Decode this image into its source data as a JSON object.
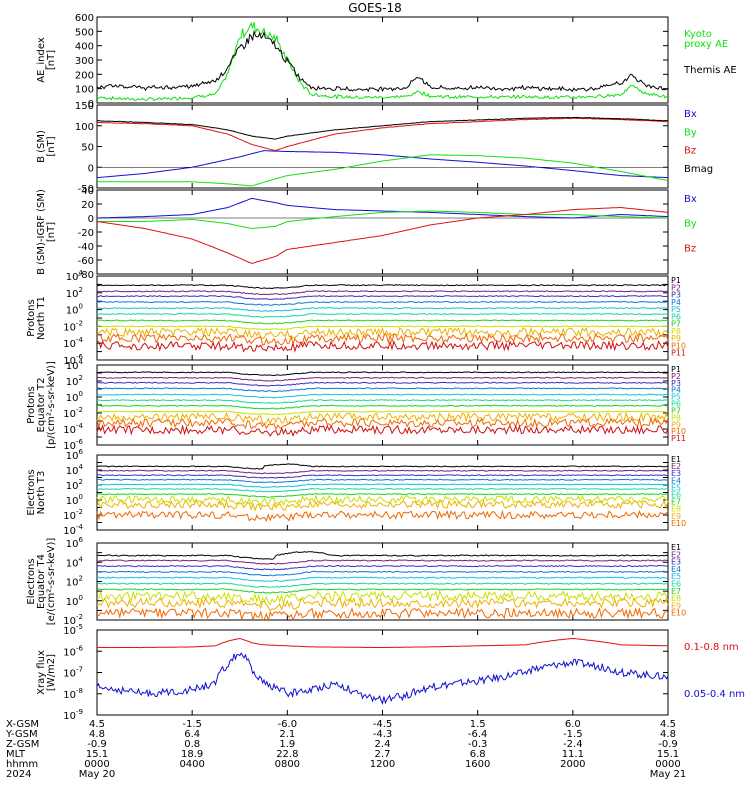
{
  "title": "GOES-18",
  "colors": {
    "black": "#000000",
    "red": "#e01010",
    "green": "#10e010",
    "blue": "#1010d0",
    "dark_red": "#a00000",
    "p_channel": [
      "#000000",
      "#7a1f7a",
      "#3a2fc0",
      "#0b78d8",
      "#12c0e0",
      "#10d8a0",
      "#20d020",
      "#c8e000",
      "#f0b000",
      "#f06800",
      "#d01010",
      "#a00000"
    ]
  },
  "panels": {
    "ae": {
      "ylabel": [
        "AE_index",
        "[nT]"
      ],
      "legend": [
        {
          "text": "Kyoto",
          "color_key": "green"
        },
        {
          "text": "proxy AE",
          "color_key": "green"
        },
        {
          "text": "Themis AE",
          "color_key": "black"
        }
      ]
    },
    "bsm": {
      "ylabel": [
        "B (SM)",
        "[nT]"
      ],
      "legend": [
        {
          "text": "Bx",
          "color_key": "blue"
        },
        {
          "text": "By",
          "color_key": "green"
        },
        {
          "text": "Bz",
          "color_key": "red"
        },
        {
          "text": "Bmag",
          "color_key": "black"
        }
      ]
    },
    "bigrf": {
      "ylabel": [
        "B (SM)-IGRF (SM)",
        "[nT]"
      ],
      "legend": [
        {
          "text": "Bx",
          "color_key": "blue"
        },
        {
          "text": "By",
          "color_key": "green"
        },
        {
          "text": "Bz",
          "color_key": "red"
        }
      ]
    },
    "pnt1": {
      "ylabel": [
        "Protons",
        "North T1"
      ],
      "channels": [
        "P1",
        "P2",
        "P3",
        "P4",
        "P5",
        "P6",
        "P7",
        "P8",
        "P9",
        "P10",
        "P11"
      ]
    },
    "pet2": {
      "ylabel": [
        "Protons",
        "Equator T2",
        "[p/(cm²-s-sr-keV)]"
      ],
      "channels": [
        "P1",
        "P2",
        "P3",
        "P4",
        "P5",
        "P6",
        "P7",
        "P8",
        "P9",
        "P10",
        "P11"
      ]
    },
    "ent3": {
      "ylabel": [
        "Electrons",
        "North T3"
      ],
      "channels": [
        "E1",
        "E2",
        "E3",
        "E4",
        "E5",
        "E6",
        "E7",
        "E8",
        "E9",
        "E10"
      ]
    },
    "eet4": {
      "ylabel": [
        "Electrons",
        "Equator T4",
        "[e/(cm²-s-sr-keV)]"
      ],
      "channels": [
        "E1",
        "E2",
        "E3",
        "E4",
        "E5",
        "E6",
        "E7",
        "E8",
        "E9",
        "E10"
      ]
    },
    "xray": {
      "ylabel": [
        "Xray flux",
        "[W/m2]"
      ],
      "legend": [
        {
          "text": "0.1-0.8 nm",
          "color_key": "red"
        },
        {
          "text": "0.05-0.4 nm",
          "color_key": "blue"
        }
      ]
    }
  },
  "x_axis": {
    "rows": [
      {
        "label": "X-GSM",
        "values": [
          "4.5",
          "-1.5",
          "-6.0",
          "-4.5",
          "1.5",
          "6.0",
          "4.5"
        ]
      },
      {
        "label": "Y-GSM",
        "values": [
          "4.8",
          "6.4",
          "2.1",
          "-4.3",
          "-6.4",
          "-1.5",
          "4.8"
        ]
      },
      {
        "label": "Z-GSM",
        "values": [
          "-0.9",
          "0.8",
          "1.9",
          "2.4",
          "-0.3",
          "-2.4",
          "-0.9"
        ]
      },
      {
        "label": "MLT",
        "values": [
          "15.1",
          "18.9",
          "22.8",
          "2.7",
          "6.8",
          "11.1",
          "15.1"
        ]
      },
      {
        "label": "hhmm",
        "values": [
          "0000",
          "0400",
          "0800",
          "1200",
          "1600",
          "2000",
          "0000"
        ]
      },
      {
        "label": "2024",
        "values": [
          "May 20",
          "",
          "",
          "",
          "",
          "",
          "May 21"
        ]
      }
    ]
  },
  "chart_data": [
    {
      "type": "line",
      "title": "GOES-18",
      "ylabel": "AE_index [nT]",
      "ylim": [
        0,
        600
      ],
      "yticks": [
        0,
        100,
        200,
        300,
        400,
        500,
        600
      ],
      "xlim": [
        "2024-05-20 00:00",
        "2024-05-21 00:00"
      ],
      "series": [
        {
          "name": "Kyoto proxy AE",
          "color": "#10e010",
          "x": [
            0,
            1,
            2,
            3,
            4,
            5,
            5.5,
            6,
            6.5,
            7,
            7.5,
            8,
            8.5,
            9,
            10,
            11,
            12,
            13,
            13.5,
            14,
            15,
            16,
            17,
            18,
            19,
            20,
            21,
            22,
            22.5,
            23,
            24
          ],
          "y": [
            40,
            30,
            25,
            30,
            40,
            60,
            200,
            470,
            540,
            500,
            450,
            300,
            150,
            60,
            45,
            40,
            40,
            45,
            80,
            50,
            40,
            45,
            40,
            45,
            40,
            40,
            45,
            60,
            120,
            70,
            40
          ]
        },
        {
          "name": "Themis AE",
          "color": "#000000",
          "x": [
            0,
            1,
            2,
            3,
            4,
            5,
            5.5,
            6,
            6.5,
            7,
            7.5,
            8,
            8.5,
            9,
            10,
            11,
            12,
            13,
            13.5,
            14,
            15,
            16,
            17,
            18,
            19,
            20,
            21,
            22,
            22.5,
            23,
            24
          ],
          "y": [
            110,
            120,
            105,
            110,
            115,
            160,
            250,
            380,
            470,
            460,
            400,
            290,
            180,
            110,
            100,
            95,
            100,
            105,
            190,
            110,
            100,
            110,
            100,
            105,
            100,
            95,
            100,
            140,
            190,
            130,
            90
          ]
        }
      ]
    },
    {
      "type": "line",
      "ylabel": "B (SM) [nT]",
      "ylim": [
        -50,
        150
      ],
      "yticks": [
        -50,
        0,
        50,
        100,
        150
      ],
      "series": [
        {
          "name": "Bx",
          "color": "#1010d0",
          "x": [
            0,
            2,
            4,
            6,
            7,
            8,
            10,
            12,
            14,
            16,
            18,
            20,
            22,
            24
          ],
          "y": [
            -25,
            -15,
            0,
            25,
            40,
            38,
            36,
            30,
            20,
            12,
            3,
            -8,
            -20,
            -25
          ]
        },
        {
          "name": "By",
          "color": "#10e010",
          "x": [
            0,
            2,
            4,
            5.5,
            6.5,
            7.5,
            8,
            10,
            12,
            14,
            16,
            18,
            20,
            22,
            24
          ],
          "y": [
            -35,
            -35,
            -35,
            -40,
            -45,
            -28,
            -20,
            -5,
            15,
            30,
            28,
            22,
            10,
            -10,
            -32
          ]
        },
        {
          "name": "Bz",
          "color": "#e01010",
          "x": [
            0,
            2,
            4,
            5.5,
            6.5,
            7.5,
            8,
            10,
            12,
            14,
            16,
            18,
            20,
            22,
            24
          ],
          "y": [
            108,
            105,
            100,
            80,
            55,
            40,
            50,
            80,
            95,
            105,
            110,
            115,
            118,
            115,
            110
          ]
        },
        {
          "name": "Bmag",
          "color": "#000000",
          "x": [
            0,
            2,
            4,
            5.5,
            6.5,
            7.5,
            8,
            10,
            12,
            14,
            16,
            18,
            20,
            22,
            24
          ],
          "y": [
            112,
            108,
            103,
            90,
            75,
            68,
            75,
            90,
            100,
            110,
            114,
            118,
            120,
            117,
            112
          ]
        }
      ]
    },
    {
      "type": "line",
      "ylabel": "B (SM)-IGRF (SM) [nT]",
      "ylim": [
        -80,
        40
      ],
      "yticks": [
        -80,
        -60,
        -40,
        -20,
        0,
        20,
        40
      ],
      "series": [
        {
          "name": "Bx",
          "color": "#1010d0",
          "x": [
            0,
            2,
            4,
            5.5,
            6.5,
            7.5,
            8,
            10,
            12,
            14,
            16,
            18,
            20,
            22,
            24
          ],
          "y": [
            0,
            2,
            5,
            15,
            28,
            22,
            18,
            12,
            10,
            8,
            5,
            2,
            0,
            5,
            2
          ]
        },
        {
          "name": "By",
          "color": "#10e010",
          "x": [
            0,
            2,
            4,
            5.5,
            6.5,
            7.5,
            8,
            10,
            12,
            14,
            16,
            18,
            20,
            22,
            24
          ],
          "y": [
            -5,
            -5,
            -2,
            -8,
            -15,
            -12,
            -5,
            2,
            8,
            10,
            8,
            5,
            5,
            2,
            0
          ]
        },
        {
          "name": "Bz",
          "color": "#e01010",
          "x": [
            0,
            2,
            4,
            5.5,
            6.5,
            7.5,
            8,
            10,
            12,
            14,
            16,
            18,
            20,
            22,
            24
          ],
          "y": [
            -5,
            -15,
            -30,
            -50,
            -65,
            -55,
            -45,
            -35,
            -25,
            -10,
            0,
            5,
            12,
            15,
            8
          ]
        }
      ]
    },
    {
      "type": "line",
      "ylabel": "Protons North T1",
      "yscale": "log",
      "ylim": [
        1e-06,
        10000.0
      ],
      "series": [
        {
          "name": "P1",
          "y_level": 800
        },
        {
          "name": "P2",
          "y_level": 150
        },
        {
          "name": "P3",
          "y_level": 40
        },
        {
          "name": "P4",
          "y_level": 8
        },
        {
          "name": "P5",
          "y_level": 1.5
        },
        {
          "name": "P6",
          "y_level": 0.3
        },
        {
          "name": "P7",
          "y_level": 0.05
        },
        {
          "name": "P8",
          "y_level": 0.01
        },
        {
          "name": "P9",
          "y_level": 0.002
        },
        {
          "name": "P10",
          "y_level": 0.0004
        },
        {
          "name": "P11",
          "y_level": 5e-05
        }
      ]
    },
    {
      "type": "line",
      "ylabel": "Protons Equator T2 [p/(cm²-s-sr-keV)]",
      "yscale": "log",
      "ylim": [
        1e-06,
        10000.0
      ],
      "series": [
        {
          "name": "P1",
          "y_level": 1200
        },
        {
          "name": "P2",
          "y_level": 250
        },
        {
          "name": "P3",
          "y_level": 60
        },
        {
          "name": "P4",
          "y_level": 12
        },
        {
          "name": "P5",
          "y_level": 2
        },
        {
          "name": "P6",
          "y_level": 0.4
        },
        {
          "name": "P7",
          "y_level": 0.08
        },
        {
          "name": "P8",
          "y_level": 0.015
        },
        {
          "name": "P9",
          "y_level": 0.003
        },
        {
          "name": "P10",
          "y_level": 0.0006
        },
        {
          "name": "P11",
          "y_level": 8e-05
        }
      ]
    },
    {
      "type": "line",
      "ylabel": "Electrons North T3",
      "yscale": "log",
      "ylim": [
        0.0001,
        1000000.0
      ],
      "series": [
        {
          "name": "E1",
          "y_level": 30000
        },
        {
          "name": "E2",
          "y_level": 8000
        },
        {
          "name": "E3",
          "y_level": 2000
        },
        {
          "name": "E4",
          "y_level": 500
        },
        {
          "name": "E5",
          "y_level": 120
        },
        {
          "name": "E6",
          "y_level": 30
        },
        {
          "name": "E7",
          "y_level": 6
        },
        {
          "name": "E8",
          "y_level": 1.2
        },
        {
          "name": "E9",
          "y_level": 0.25
        },
        {
          "name": "E10",
          "y_level": 0.01
        }
      ]
    },
    {
      "type": "line",
      "ylabel": "Electrons Equator T4 [e/(cm²-s-sr-keV)]",
      "yscale": "log",
      "ylim": [
        0.01,
        1000000.0
      ],
      "series": [
        {
          "name": "E1",
          "y_level": 50000
        },
        {
          "name": "E2",
          "y_level": 15000
        },
        {
          "name": "E3",
          "y_level": 4000
        },
        {
          "name": "E4",
          "y_level": 1000
        },
        {
          "name": "E5",
          "y_level": 250
        },
        {
          "name": "E6",
          "y_level": 60
        },
        {
          "name": "E7",
          "y_level": 15
        },
        {
          "name": "E8",
          "y_level": 3
        },
        {
          "name": "E9",
          "y_level": 0.6
        },
        {
          "name": "E10",
          "y_level": 0.05
        }
      ]
    },
    {
      "type": "line",
      "ylabel": "Xray flux [W/m2]",
      "yscale": "log",
      "ylim": [
        1e-09,
        1e-05
      ],
      "yticks": [
        1e-09,
        1e-08,
        1e-07,
        1e-06,
        1e-05
      ],
      "series": [
        {
          "name": "0.1-0.8 nm",
          "color": "#e01010",
          "x": [
            0,
            2,
            4,
            5,
            5.5,
            6,
            6.5,
            7,
            9,
            12,
            14,
            16,
            18,
            19,
            20,
            21,
            22,
            24
          ],
          "y": [
            1.5e-06,
            1.5e-06,
            1.6e-06,
            1.8e-06,
            3e-06,
            4e-06,
            2.5e-06,
            2e-06,
            1.6e-06,
            1.5e-06,
            1.6e-06,
            1.8e-06,
            2e-06,
            3e-06,
            4e-06,
            3e-06,
            2e-06,
            1.8e-06
          ]
        },
        {
          "name": "0.05-0.4 nm",
          "color": "#1010d0",
          "x": [
            0,
            1,
            2,
            3,
            4,
            5,
            5.5,
            6,
            6.5,
            7,
            8,
            9,
            10,
            11,
            12,
            13,
            14,
            15,
            16,
            17,
            18,
            19,
            20,
            21,
            22,
            23,
            24
          ],
          "y": [
            2e-08,
            1.5e-08,
            1e-08,
            1.2e-08,
            1.5e-08,
            3e-08,
            2e-07,
            8e-07,
            1e-07,
            3e-08,
            1e-08,
            1.5e-08,
            3e-08,
            8e-09,
            5e-09,
            8e-09,
            2e-08,
            3e-08,
            4e-08,
            6e-08,
            1e-07,
            2e-07,
            3e-07,
            2e-07,
            1e-07,
            8e-08,
            6e-08
          ]
        }
      ]
    }
  ]
}
